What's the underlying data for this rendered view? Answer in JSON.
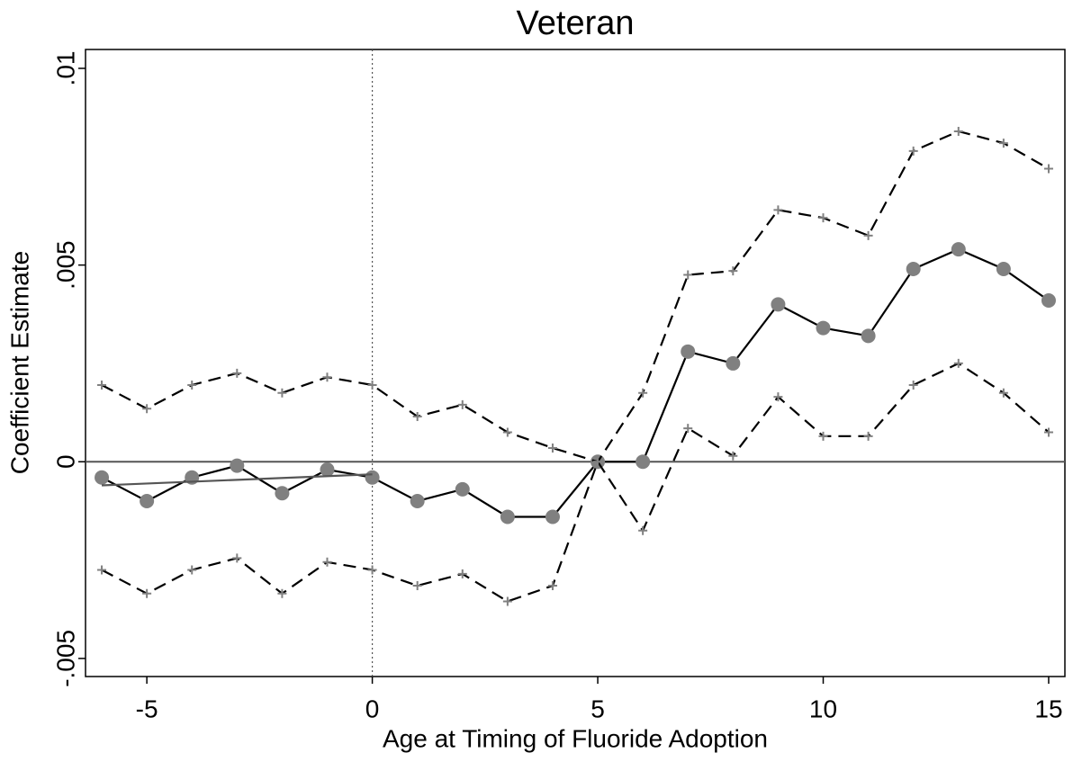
{
  "chart_data": {
    "type": "line",
    "title": "Veteran",
    "xlabel": "Age at Timing of Fluoride Adoption",
    "ylabel": "Coefficient Estimate",
    "x": [
      -6,
      -5,
      -4,
      -3,
      -2,
      -1,
      0,
      1,
      2,
      3,
      4,
      5,
      6,
      7,
      8,
      9,
      10,
      11,
      12,
      13,
      14,
      15
    ],
    "series": [
      {
        "color": "#808080",
        "line_color": "#000000",
        "dash": "solid",
        "marker": "circle",
        "values": [
          -0.0004,
          -0.001,
          -0.0004,
          -0.0001,
          -0.0008,
          -0.0002,
          -0.0004,
          -0.001,
          -0.0007,
          -0.0014,
          -0.0014,
          0,
          0,
          0.0028,
          0.0025,
          0.004,
          0.0034,
          0.0032,
          0.0049,
          0.0054,
          0.0049,
          0.0041
        ]
      },
      {
        "color": "#808080",
        "line_color": "#000000",
        "dash": "dashed",
        "marker": "plus",
        "values": [
          0.00195,
          0.00135,
          0.00195,
          0.00225,
          0.00175,
          0.00215,
          0.00195,
          0.00115,
          0.00145,
          0.00075,
          0.00035,
          0,
          0.00175,
          0.00475,
          0.00485,
          0.0064,
          0.0062,
          0.00575,
          0.0079,
          0.0084,
          0.0081,
          0.00745
        ]
      },
      {
        "color": "#808080",
        "line_color": "#000000",
        "dash": "dashed",
        "marker": "plus",
        "values": [
          -0.00275,
          -0.00335,
          -0.00275,
          -0.00245,
          -0.00335,
          -0.00255,
          -0.00275,
          -0.00315,
          -0.00285,
          -0.00355,
          -0.00315,
          0,
          -0.00175,
          0.00085,
          0.00015,
          0.00165,
          0.00065,
          0.00065,
          0.00195,
          0.0025,
          0.00175,
          0.00075
        ]
      },
      {
        "line_color": "#555555",
        "dash": "solid",
        "marker": "none",
        "x": [
          -6,
          0
        ],
        "values": [
          -0.0006,
          -0.00032
        ]
      }
    ],
    "xlim": [
      -6.36,
      15.36
    ],
    "xticks": [
      -5,
      0,
      5,
      10,
      15
    ],
    "ylim": [
      -0.00546,
      0.01048
    ],
    "yticks": [
      {
        "value": -0.005,
        "label": "-.005"
      },
      0,
      {
        "value": 0.005,
        "label": ".005"
      },
      {
        "value": 0.01,
        "label": ".01"
      }
    ],
    "hlines": [
      0
    ],
    "vlines": [
      0
    ]
  }
}
